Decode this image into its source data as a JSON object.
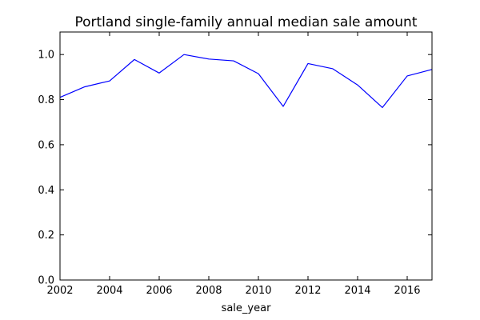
{
  "chart_data": {
    "type": "line",
    "title": "Portland single-family annual median sale amount",
    "xlabel": "sale_year",
    "ylabel": "",
    "xlim": [
      2002,
      2017
    ],
    "ylim": [
      0.0,
      1.1
    ],
    "xticks": [
      "2002",
      "2004",
      "2006",
      "2008",
      "2010",
      "2012",
      "2014",
      "2016"
    ],
    "yticks": [
      "0.0",
      "0.2",
      "0.4",
      "0.6",
      "0.8",
      "1.0"
    ],
    "grid": false,
    "series": [
      {
        "color": "#0000ff",
        "x": [
          2002,
          2003,
          2004,
          2005,
          2006,
          2007,
          2008,
          2009,
          2010,
          2011,
          2012,
          2013,
          2014,
          2015,
          2016,
          2017
        ],
        "y": [
          0.81,
          0.857,
          0.883,
          0.978,
          0.918,
          1.0,
          0.98,
          0.972,
          0.915,
          0.77,
          0.96,
          0.937,
          0.865,
          0.765,
          0.905,
          0.934
        ]
      }
    ]
  }
}
